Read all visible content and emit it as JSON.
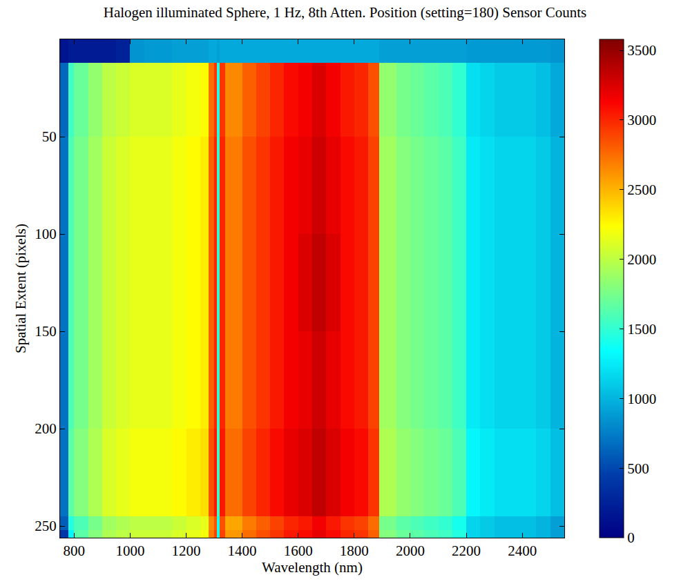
{
  "chart_data": {
    "type": "heatmap",
    "title": "Halogen illuminated Sphere, 1 Hz, 8th Atten. Position (setting=180) Sensor Counts",
    "x_label": "Wavelength (nm)",
    "y_label": "Spatial Extent (pixels)",
    "x": [
      750,
      780,
      800,
      850,
      900,
      950,
      1000,
      1050,
      1100,
      1150,
      1200,
      1250,
      1280,
      1300,
      1310,
      1320,
      1340,
      1360,
      1400,
      1450,
      1500,
      1550,
      1600,
      1650,
      1700,
      1750,
      1800,
      1850,
      1890,
      1950,
      2000,
      2050,
      2100,
      2150,
      2200,
      2250,
      2300,
      2350,
      2400,
      2450,
      2500,
      2550
    ],
    "y": [
      0,
      12,
      50,
      100,
      150,
      200,
      245,
      252,
      256
    ],
    "z": [
      [
        150,
        200,
        200,
        200,
        200,
        250,
        850,
        880,
        880,
        900,
        900,
        900,
        950,
        950,
        900,
        950,
        950,
        950,
        950,
        950,
        950,
        950,
        950,
        950,
        950,
        950,
        950,
        950,
        900,
        900,
        900,
        900,
        900,
        900,
        880,
        880,
        880,
        880,
        880,
        880,
        850
      ],
      [
        650,
        1550,
        1700,
        1850,
        2000,
        2050,
        2100,
        2100,
        2100,
        2150,
        2200,
        2250,
        2750,
        2950,
        1450,
        2950,
        2650,
        2650,
        2800,
        2900,
        3000,
        3100,
        3150,
        3250,
        3150,
        3050,
        3000,
        2850,
        1850,
        1750,
        1700,
        1650,
        1600,
        1500,
        1200,
        1150,
        1100,
        1100,
        1100,
        1050,
        950
      ],
      [
        700,
        1600,
        1750,
        1900,
        2050,
        2100,
        2150,
        2150,
        2150,
        2200,
        2250,
        2300,
        2800,
        3000,
        1500,
        3000,
        2700,
        2700,
        2850,
        2950,
        3050,
        3150,
        3200,
        3300,
        3200,
        3100,
        3050,
        2900,
        1900,
        1800,
        1750,
        1700,
        1650,
        1550,
        1250,
        1200,
        1150,
        1150,
        1150,
        1100,
        1000
      ],
      [
        700,
        1600,
        1750,
        1900,
        2050,
        2100,
        2150,
        2150,
        2150,
        2200,
        2250,
        2300,
        2800,
        3000,
        1500,
        3000,
        2700,
        2700,
        2850,
        2950,
        3050,
        3150,
        3250,
        3350,
        3250,
        3100,
        3050,
        2900,
        1900,
        1800,
        1750,
        1700,
        1650,
        1550,
        1250,
        1200,
        1150,
        1150,
        1150,
        1100,
        1000
      ],
      [
        700,
        1600,
        1750,
        1900,
        2050,
        2100,
        2150,
        2150,
        2150,
        2200,
        2250,
        2300,
        2800,
        3000,
        1500,
        3000,
        2700,
        2700,
        2850,
        2950,
        3050,
        3150,
        3200,
        3300,
        3200,
        3100,
        3050,
        2900,
        1900,
        1800,
        1750,
        1700,
        1650,
        1550,
        1250,
        1200,
        1150,
        1150,
        1150,
        1100,
        1000
      ],
      [
        700,
        1650,
        1800,
        1950,
        2100,
        2150,
        2200,
        2200,
        2200,
        2250,
        2300,
        2350,
        2850,
        3050,
        1550,
        3050,
        2750,
        2750,
        2900,
        3000,
        3100,
        3200,
        3250,
        3350,
        3250,
        3150,
        3100,
        2950,
        1950,
        1850,
        1800,
        1750,
        1700,
        1600,
        1300,
        1250,
        1200,
        1200,
        1200,
        1150,
        1050
      ],
      [
        600,
        1450,
        1600,
        1750,
        1900,
        1950,
        2000,
        2000,
        2000,
        2050,
        2100,
        2150,
        2650,
        2850,
        1400,
        2850,
        2550,
        2550,
        2700,
        2800,
        2900,
        3000,
        3050,
        3150,
        3050,
        2950,
        2900,
        2750,
        1750,
        1650,
        1600,
        1550,
        1500,
        1400,
        1150,
        1100,
        1050,
        1050,
        1050,
        1000,
        900
      ],
      [
        400,
        1300,
        1650,
        1800,
        1950,
        2000,
        2050,
        2050,
        2050,
        2100,
        2150,
        2200,
        2700,
        2900,
        1400,
        2900,
        2600,
        2600,
        2750,
        2850,
        2950,
        3050,
        3100,
        3200,
        3100,
        3000,
        2950,
        2800,
        1800,
        1700,
        1650,
        1600,
        1550,
        1450,
        1150,
        1100,
        1050,
        1050,
        1050,
        1000,
        900
      ]
    ],
    "xlim": [
      750,
      2550
    ],
    "ylim": [
      256,
      0
    ],
    "xticks": [
      800,
      1000,
      1200,
      1400,
      1600,
      1800,
      2000,
      2200,
      2400
    ],
    "yticks": [
      50,
      100,
      150,
      200,
      250
    ],
    "zlim": [
      0,
      3580
    ],
    "zticks": [
      0,
      500,
      1000,
      1500,
      2000,
      2500,
      3000,
      3500
    ],
    "grid": false
  }
}
